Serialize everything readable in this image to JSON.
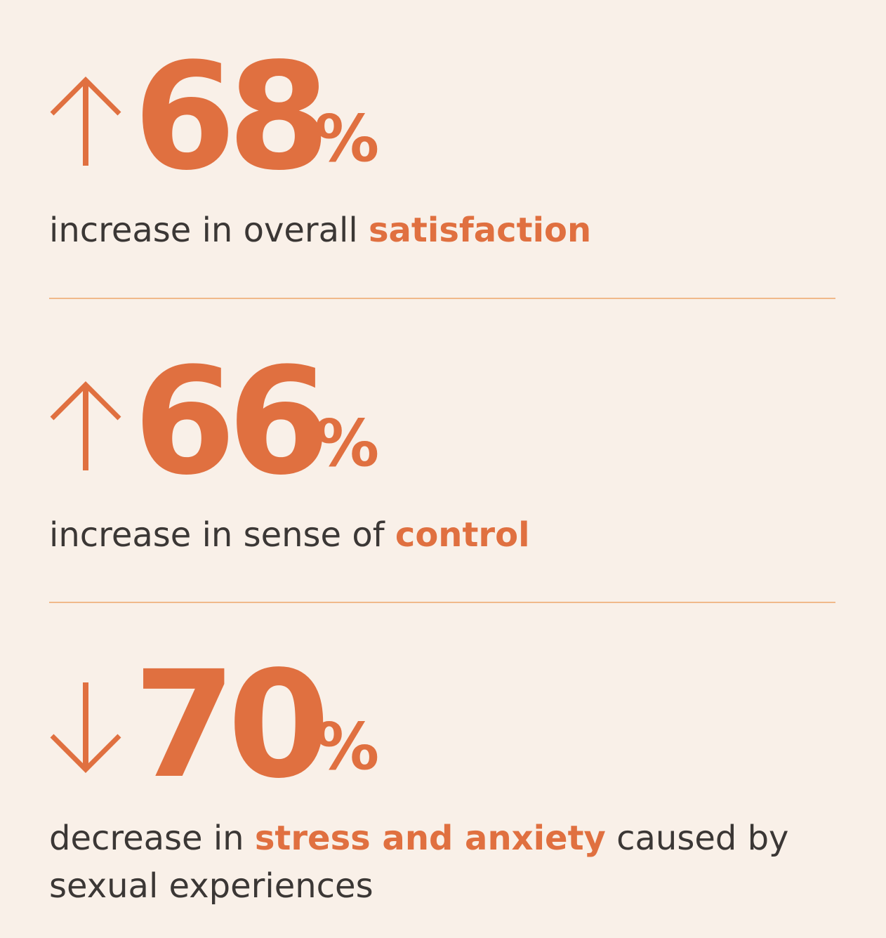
{
  "accent_color": "#e07040",
  "text_color": "#3b3735",
  "divider_color": "#f0b98a",
  "background_color": "#f9f0e8",
  "stats": [
    {
      "direction": "up",
      "icon": "arrow-up-icon",
      "number": "68",
      "percent_sign": "%",
      "caption_before": "increase in overall ",
      "caption_highlight": "satisfaction",
      "caption_after": ""
    },
    {
      "direction": "up",
      "icon": "arrow-up-icon",
      "number": "66",
      "percent_sign": "%",
      "caption_before": "increase in sense of ",
      "caption_highlight": "control",
      "caption_after": ""
    },
    {
      "direction": "down",
      "icon": "arrow-down-icon",
      "number": "70",
      "percent_sign": "%",
      "caption_before": "decrease in ",
      "caption_highlight": "stress and anxiety",
      "caption_after": " caused by",
      "caption_line2": "sexual experiences"
    }
  ]
}
